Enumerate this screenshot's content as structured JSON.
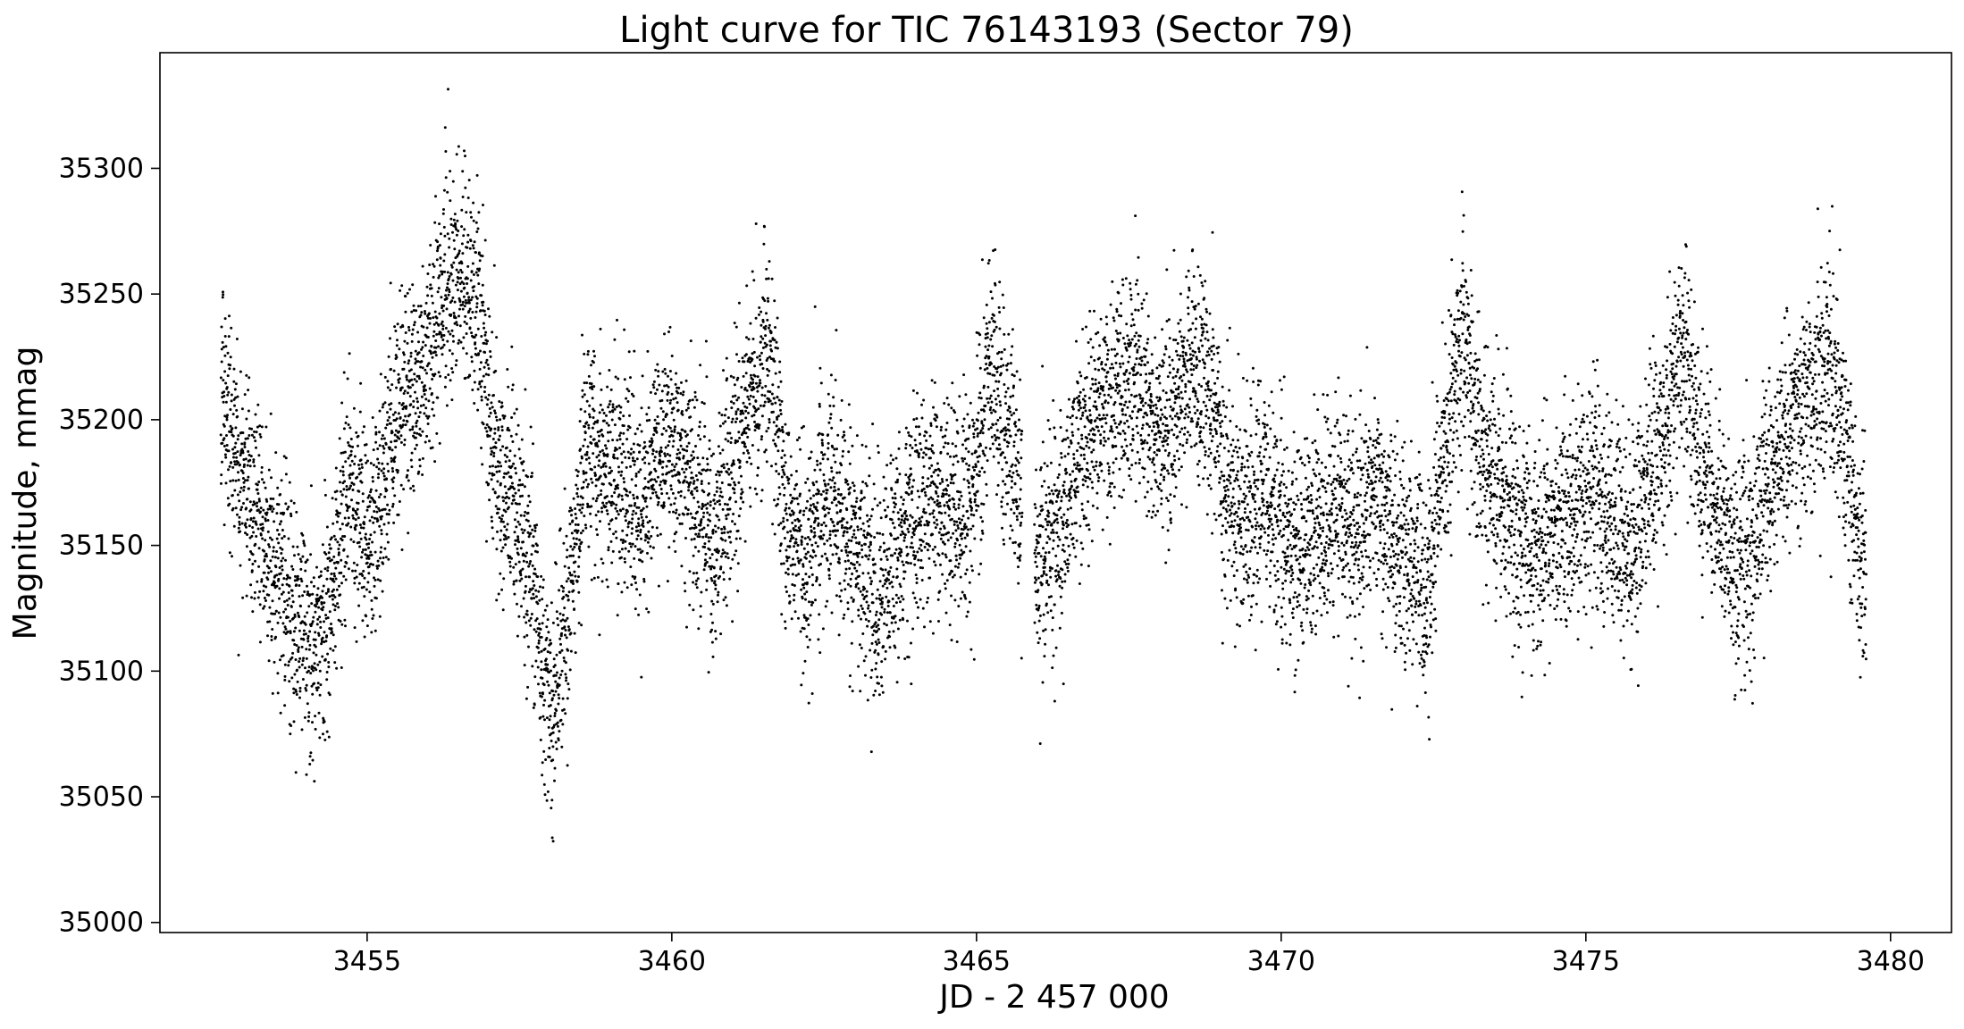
{
  "chart_data": {
    "type": "scatter",
    "title": "Light curve for TIC 76143193 (Sector 79)",
    "xlabel": "JD - 2 457 000",
    "ylabel": "Magnitude, mmag",
    "xlim": [
      3451.6,
      3481.0
    ],
    "ylim": [
      34996,
      35346
    ],
    "x_ticks": [
      3455,
      3460,
      3465,
      3470,
      3475,
      3480
    ],
    "x_tick_labels": [
      "3455",
      "3460",
      "3465",
      "3470",
      "3475",
      "3480"
    ],
    "y_ticks": [
      35000,
      35050,
      35100,
      35150,
      35200,
      35250,
      35300
    ],
    "y_tick_labels": [
      "35000",
      "35050",
      "35100",
      "35150",
      "35200",
      "35250",
      "35300"
    ],
    "y_inverted": false,
    "grid": false,
    "legend": "none",
    "marker_color": "#000000",
    "series": [
      {
        "style": "points",
        "trend_x": [
          3452.6,
          3452.9,
          3453.2,
          3453.5,
          3453.8,
          3454.1,
          3454.4,
          3454.7,
          3455.0,
          3455.3,
          3455.6,
          3455.9,
          3456.2,
          3456.5,
          3456.8,
          3457.1,
          3457.4,
          3457.7,
          3458.0,
          3458.3,
          3458.6,
          3458.9,
          3459.2,
          3459.5,
          3459.8,
          3460.1,
          3460.4,
          3460.7,
          3461.0,
          3461.3,
          3461.6,
          3461.9,
          3462.2,
          3462.5,
          3462.8,
          3463.1,
          3463.4,
          3463.7,
          3464.0,
          3464.3,
          3464.6,
          3464.9,
          3465.2,
          3465.5,
          3465.8,
          3466.1,
          3466.4,
          3466.7,
          3467.0,
          3467.3,
          3467.6,
          3467.9,
          3468.2,
          3468.5,
          3468.8,
          3469.1,
          3469.4,
          3469.7,
          3470.0,
          3470.3,
          3470.6,
          3470.9,
          3471.2,
          3471.5,
          3471.8,
          3472.1,
          3472.4,
          3472.7,
          3473.0,
          3473.3,
          3473.6,
          3473.9,
          3474.2,
          3474.5,
          3474.8,
          3475.1,
          3475.4,
          3475.7,
          3476.0,
          3476.3,
          3476.6,
          3476.9,
          3477.2,
          3477.5,
          3477.8,
          3478.1,
          3478.4,
          3478.7,
          3479.0,
          3479.3,
          3479.6
        ],
        "trend_y": [
          35210,
          35185,
          35165,
          35140,
          35120,
          35110,
          35130,
          35175,
          35150,
          35180,
          35210,
          35220,
          35245,
          35260,
          35250,
          35180,
          35165,
          35140,
          35080,
          35130,
          35185,
          35180,
          35175,
          35160,
          35190,
          35190,
          35170,
          35150,
          35175,
          35210,
          35230,
          35160,
          35140,
          35170,
          35160,
          35145,
          35130,
          35150,
          35165,
          35170,
          35160,
          35165,
          35220,
          35200,
          35160,
          35140,
          35165,
          35185,
          35200,
          35210,
          35225,
          35195,
          35200,
          35220,
          35215,
          35170,
          35160,
          35175,
          35160,
          35145,
          35160,
          35165,
          35160,
          35170,
          35155,
          35140,
          35130,
          35190,
          35235,
          35180,
          35170,
          35160,
          35150,
          35155,
          35165,
          35175,
          35160,
          35150,
          35170,
          35200,
          35230,
          35180,
          35160,
          35140,
          35150,
          35180,
          35200,
          35210,
          35225,
          35180,
          35140
        ],
        "scatter_amplitude_mmag": 22,
        "n_points_per_day": 420
      }
    ]
  }
}
